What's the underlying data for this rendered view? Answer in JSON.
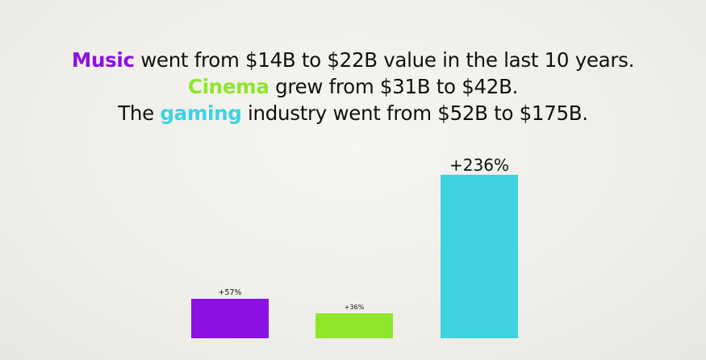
{
  "headline": {
    "line1": {
      "highlight": "Music",
      "rest": " went from $14B to $22B value in the last 10 years."
    },
    "line2": {
      "highlight": "Cinema",
      "rest": " grew from $31B to $42B."
    },
    "line3": {
      "prefix": "The ",
      "highlight": "gaming",
      "rest": " industry went from $52B to $175B."
    }
  },
  "colors": {
    "music": "#8c11e4",
    "cinema": "#8fe62a",
    "gaming": "#3ed3df"
  },
  "chart_data": {
    "type": "bar",
    "title": "",
    "xlabel": "",
    "ylabel": "",
    "categories": [
      "Music",
      "Cinema",
      "Gaming"
    ],
    "values": [
      57,
      36,
      236
    ],
    "data_labels": [
      "+57%",
      "+36%",
      "+236%"
    ],
    "bar_colors": [
      "#8c11e4",
      "#8fe62a",
      "#3ed3df"
    ],
    "ylim": [
      0,
      236
    ],
    "grid": false,
    "legend": "none"
  }
}
